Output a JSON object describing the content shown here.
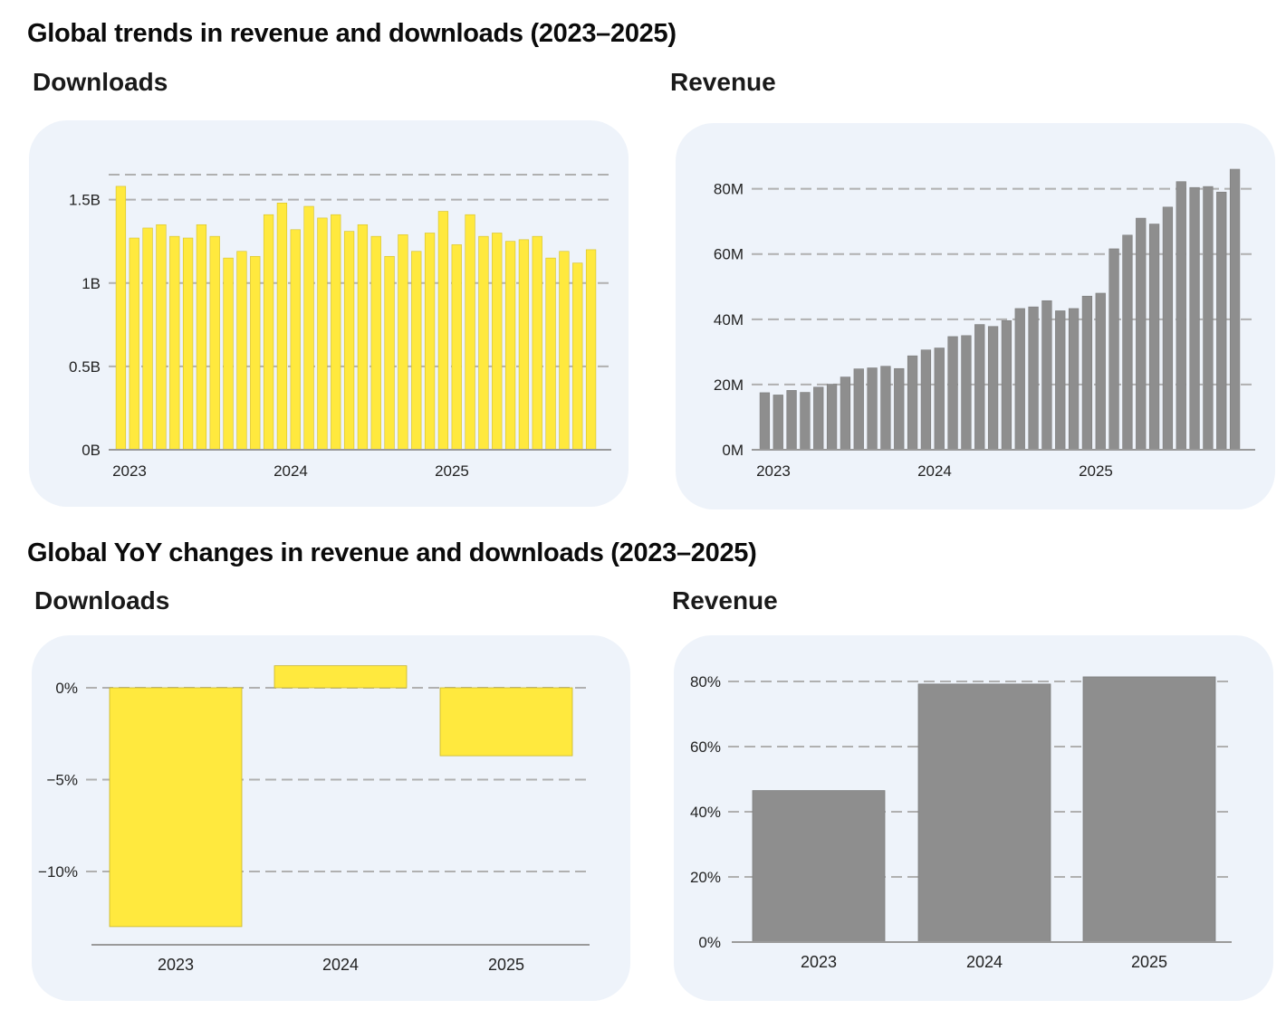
{
  "sections": {
    "trends_title": "Global trends in revenue and downloads (2023–2025)",
    "yoy_title": "Global YoY changes in revenue and downloads (2023–2025)"
  },
  "panels": {
    "downloads_label": "Downloads",
    "revenue_label": "Revenue",
    "yoy_downloads_label": "Downloads",
    "yoy_revenue_label": "Revenue"
  },
  "colors": {
    "downloads_bar": "#ffe93e",
    "revenue_bar": "#8e8e8e",
    "card_bg": "#eef3fa",
    "grid": "#b0b0b0"
  },
  "chart_data": [
    {
      "id": "trend_downloads",
      "type": "bar",
      "title": "Downloads",
      "unit": "billions",
      "ylim": [
        0,
        1.65
      ],
      "yticks": [
        0,
        0.5,
        1,
        1.5
      ],
      "ytick_labels": [
        "0B",
        "0.5B",
        "1B",
        "1.5B"
      ],
      "grid_values": [
        0.5,
        1,
        1.5,
        1.65
      ],
      "x_labels": [
        {
          "label": "2023",
          "index": 0
        },
        {
          "label": "2024",
          "index": 12
        },
        {
          "label": "2025",
          "index": 24
        }
      ],
      "values": [
        1.58,
        1.27,
        1.33,
        1.35,
        1.28,
        1.27,
        1.35,
        1.28,
        1.15,
        1.19,
        1.16,
        1.41,
        1.48,
        1.32,
        1.46,
        1.39,
        1.41,
        1.31,
        1.35,
        1.28,
        1.16,
        1.29,
        1.19,
        1.3,
        1.43,
        1.23,
        1.41,
        1.28,
        1.3,
        1.25,
        1.26,
        1.28,
        1.15,
        1.19,
        1.12,
        1.2
      ]
    },
    {
      "id": "trend_revenue",
      "type": "bar",
      "title": "Revenue",
      "unit": "millions USD",
      "ylim": [
        0,
        86
      ],
      "yticks": [
        0,
        20,
        40,
        60,
        80
      ],
      "ytick_labels": [
        "0M",
        "20M",
        "40M",
        "60M",
        "80M"
      ],
      "grid_values": [
        20,
        40,
        60,
        80
      ],
      "x_labels": [
        {
          "label": "2023",
          "index": 0
        },
        {
          "label": "2024",
          "index": 12
        },
        {
          "label": "2025",
          "index": 24
        }
      ],
      "values": [
        17.5,
        16.8,
        18.2,
        17.6,
        19.2,
        20.1,
        22.3,
        24.8,
        25.1,
        25.6,
        24.9,
        28.8,
        30.6,
        31.2,
        34.7,
        35.0,
        38.4,
        37.8,
        39.6,
        43.3,
        43.8,
        45.7,
        42.6,
        43.3,
        47.1,
        48.0,
        61.6,
        65.8,
        71.0,
        69.2,
        74.4,
        82.2,
        80.4,
        80.7,
        79.0,
        86.0
      ]
    },
    {
      "id": "yoy_downloads",
      "type": "bar",
      "title": "Downloads",
      "unit": "percent",
      "ylim": [
        -14,
        1.3
      ],
      "yticks": [
        0,
        -5,
        -10
      ],
      "ytick_labels": [
        "0%",
        "−5%",
        "−10%"
      ],
      "categories": [
        "2023",
        "2024",
        "2025"
      ],
      "values": [
        -13.0,
        1.2,
        -3.7
      ]
    },
    {
      "id": "yoy_revenue",
      "type": "bar",
      "title": "Revenue",
      "unit": "percent",
      "ylim": [
        0,
        80
      ],
      "yticks": [
        0,
        20,
        40,
        60,
        80
      ],
      "ytick_labels": [
        "0%",
        "20%",
        "40%",
        "60%",
        "80%"
      ],
      "categories": [
        "2023",
        "2024",
        "2025"
      ],
      "values": [
        46.5,
        79.2,
        81.4
      ]
    }
  ]
}
